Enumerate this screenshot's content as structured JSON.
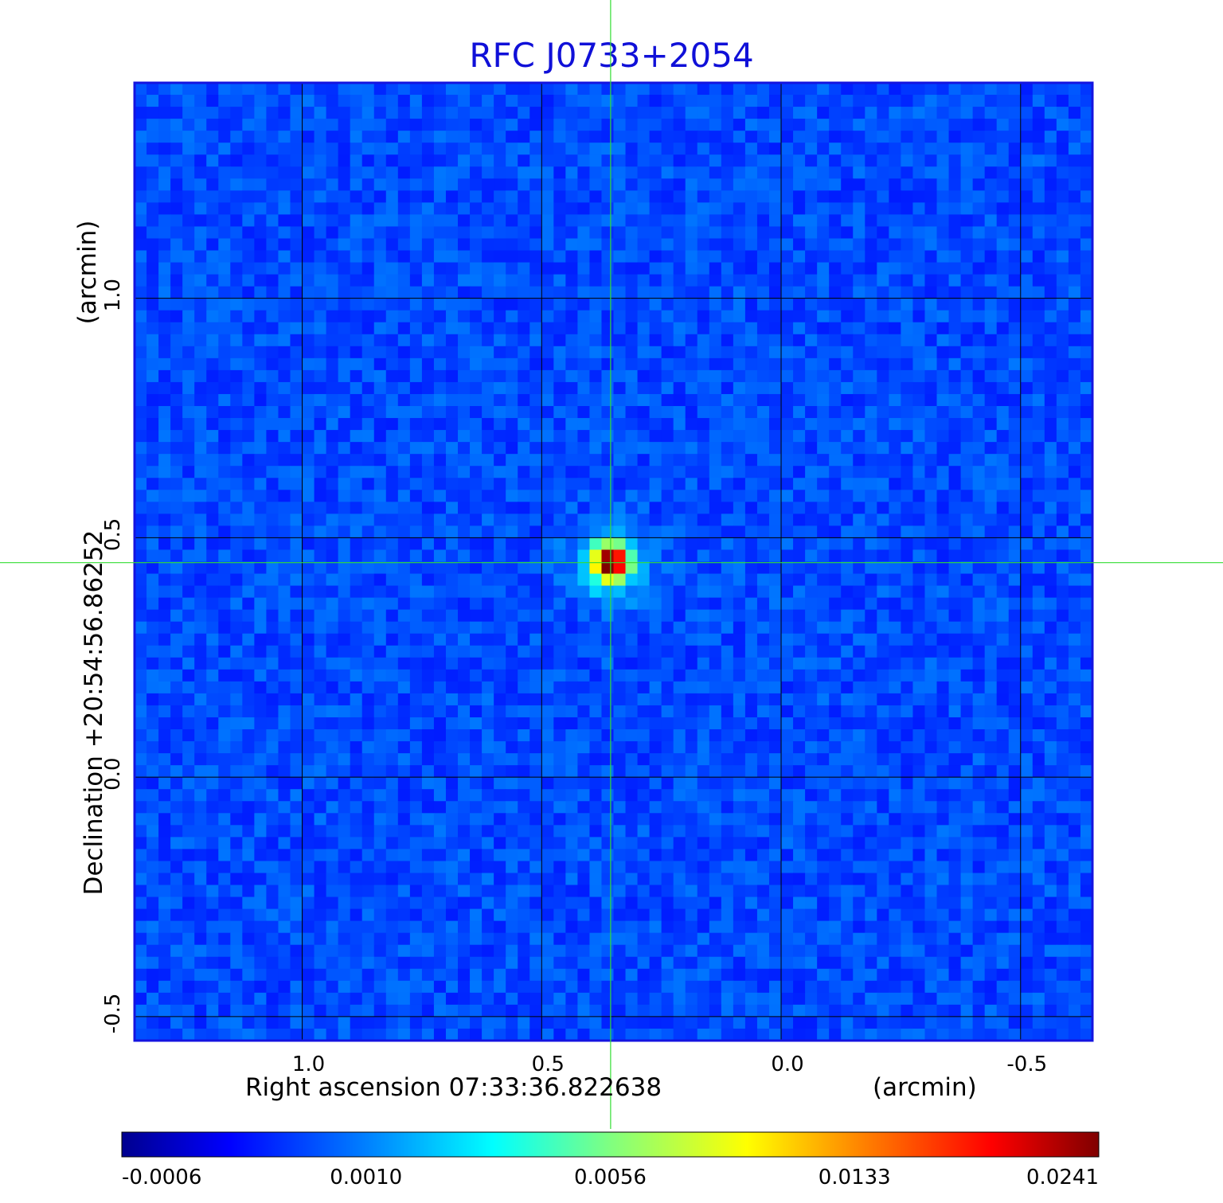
{
  "chart_data": {
    "type": "heatmap",
    "title": "RFC J0733+2054",
    "xlabel": "Right ascension  07:33:36.822638",
    "xlabel_unit": "(arcmin)",
    "ylabel": "Declination  +20:54:56.86252",
    "ylabel_unit": "(arcmin)",
    "x_axis": {
      "ticks": [
        1.0,
        0.5,
        0.0,
        -0.5
      ],
      "tick_labels": [
        "1.0",
        "0.5",
        "0.0",
        "-0.5"
      ],
      "range": [
        1.35,
        -0.65
      ],
      "direction": "decreasing"
    },
    "y_axis": {
      "ticks": [
        1.0,
        0.5,
        0.0,
        -0.5
      ],
      "tick_labels": [
        "1.0",
        "0.5",
        "0.0",
        "-0.5"
      ],
      "range": [
        -0.55,
        1.45
      ]
    },
    "grid": true,
    "source_position_arcmin": {
      "x": 0.356,
      "y": 0.448
    },
    "peak_value": 0.0241,
    "colormap": "jet",
    "colorbar": {
      "placement": "bottom",
      "tick_labels": [
        "-0.0006",
        "0.0010",
        "0.0056",
        "0.0133",
        "0.0241"
      ],
      "values": [
        -0.0006,
        0.001,
        0.0056,
        0.0133,
        0.0241
      ]
    }
  },
  "colors": {
    "title": "#1010d8",
    "frame": "#1414e0",
    "grid": "#000000",
    "crosshair": "#33dd33",
    "colormap_stops": [
      "#00008f",
      "#0000ff",
      "#0080ff",
      "#00ffff",
      "#80ff80",
      "#ffff00",
      "#ff8000",
      "#ff0000",
      "#800000"
    ]
  }
}
